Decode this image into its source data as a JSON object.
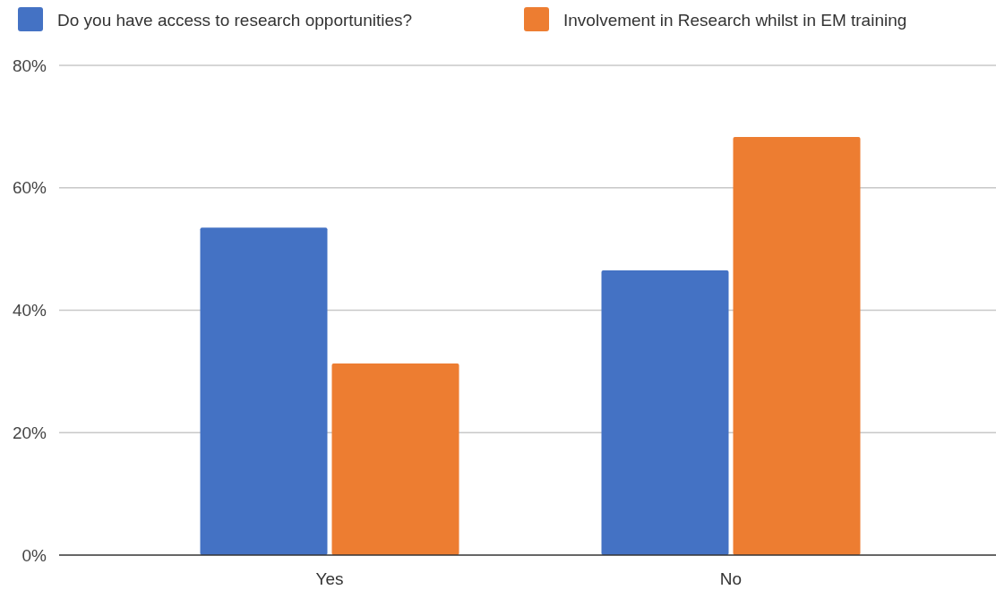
{
  "chart_data": {
    "type": "bar",
    "categories": [
      "Yes",
      "No"
    ],
    "series": [
      {
        "name": "Do you have access to research opportunities?",
        "color": "#4472c4",
        "values": [
          53.5,
          46.5
        ]
      },
      {
        "name": "Involvement in Research whilst in EM training",
        "color": "#ed7d31",
        "values": [
          31.3,
          68.3
        ]
      }
    ],
    "ylim": [
      0,
      80
    ],
    "yticks": [
      {
        "value": 0,
        "label": "0%"
      },
      {
        "value": 20,
        "label": "20%"
      },
      {
        "value": 40,
        "label": "40%"
      },
      {
        "value": 60,
        "label": "60%"
      },
      {
        "value": 80,
        "label": "80%"
      }
    ],
    "grid": "y",
    "legend": "top"
  }
}
